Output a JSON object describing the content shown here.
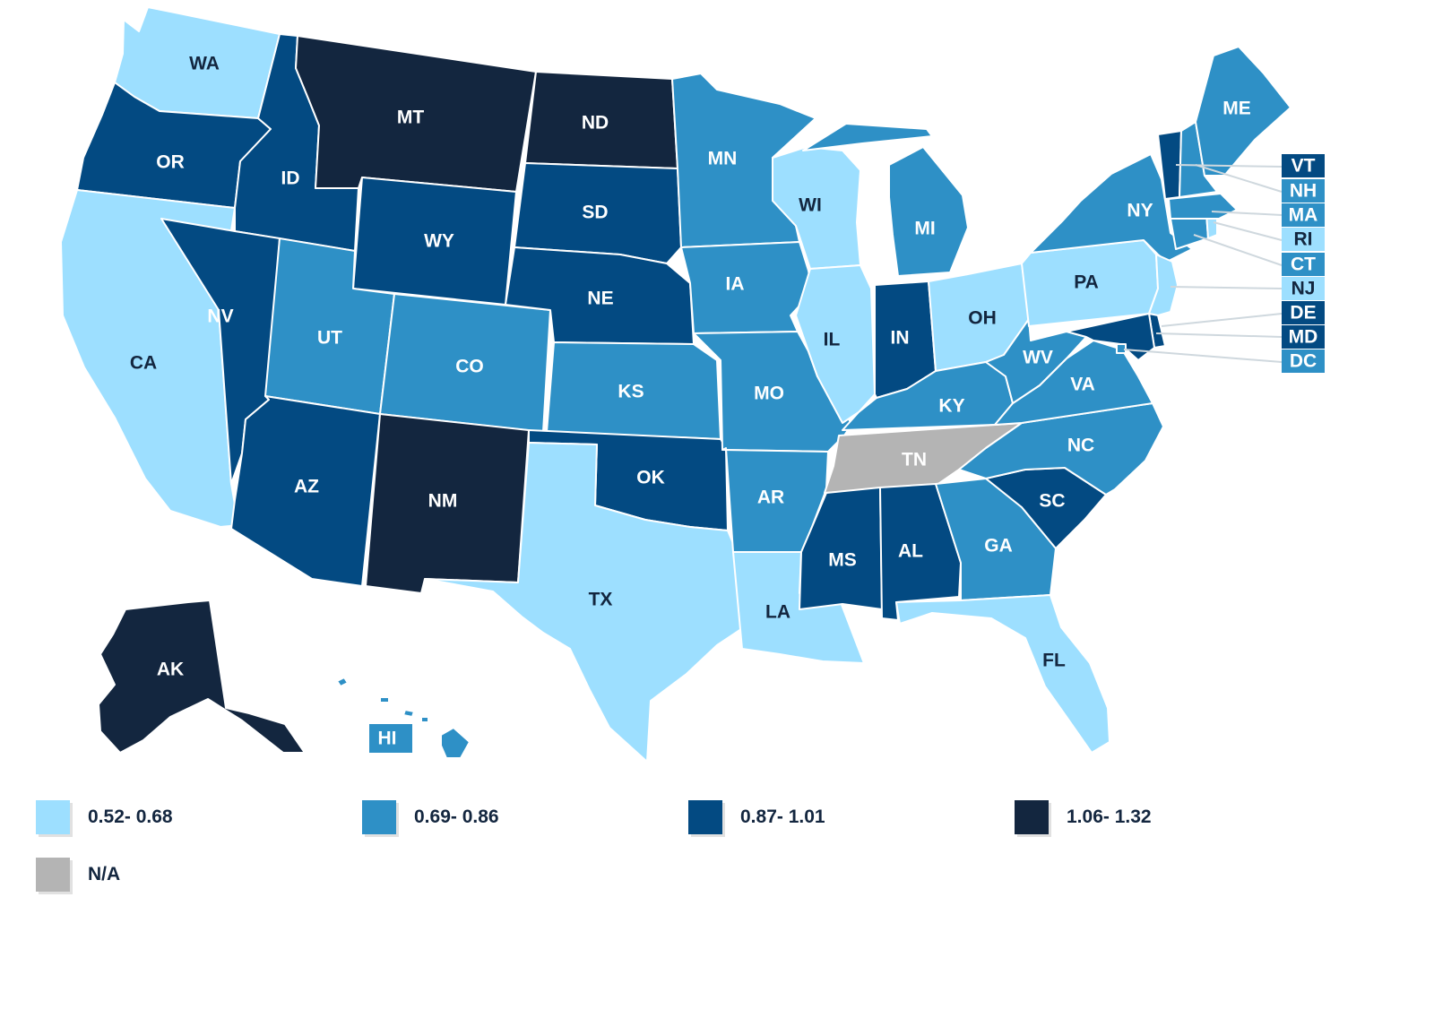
{
  "legend": [
    {
      "id": "c1",
      "label": "0.52- 0.68",
      "color": "#9ddfff"
    },
    {
      "id": "c2",
      "label": "0.69- 0.86",
      "color": "#2e90c6"
    },
    {
      "id": "c3",
      "label": "0.87- 1.01",
      "color": "#034a82"
    },
    {
      "id": "c4",
      "label": "1.06- 1.32",
      "color": "#13263f"
    },
    {
      "id": "na",
      "label": "N/A",
      "color": "#b4b4b4"
    }
  ],
  "states": [
    {
      "abbr": "WA",
      "class": "c1"
    },
    {
      "abbr": "OR",
      "class": "c3"
    },
    {
      "abbr": "CA",
      "class": "c1"
    },
    {
      "abbr": "ID",
      "class": "c3"
    },
    {
      "abbr": "NV",
      "class": "c3"
    },
    {
      "abbr": "MT",
      "class": "c4"
    },
    {
      "abbr": "WY",
      "class": "c3"
    },
    {
      "abbr": "UT",
      "class": "c2"
    },
    {
      "abbr": "AZ",
      "class": "c3"
    },
    {
      "abbr": "CO",
      "class": "c2"
    },
    {
      "abbr": "NM",
      "class": "c4"
    },
    {
      "abbr": "ND",
      "class": "c4"
    },
    {
      "abbr": "SD",
      "class": "c3"
    },
    {
      "abbr": "NE",
      "class": "c3"
    },
    {
      "abbr": "KS",
      "class": "c2"
    },
    {
      "abbr": "OK",
      "class": "c3"
    },
    {
      "abbr": "TX",
      "class": "c1"
    },
    {
      "abbr": "MN",
      "class": "c2"
    },
    {
      "abbr": "IA",
      "class": "c2"
    },
    {
      "abbr": "MO",
      "class": "c2"
    },
    {
      "abbr": "AR",
      "class": "c2"
    },
    {
      "abbr": "LA",
      "class": "c1"
    },
    {
      "abbr": "WI",
      "class": "c1"
    },
    {
      "abbr": "IL",
      "class": "c1"
    },
    {
      "abbr": "MI",
      "class": "c2"
    },
    {
      "abbr": "IN",
      "class": "c3"
    },
    {
      "abbr": "OH",
      "class": "c1"
    },
    {
      "abbr": "KY",
      "class": "c2"
    },
    {
      "abbr": "TN",
      "class": "na"
    },
    {
      "abbr": "MS",
      "class": "c3"
    },
    {
      "abbr": "AL",
      "class": "c3"
    },
    {
      "abbr": "GA",
      "class": "c2"
    },
    {
      "abbr": "FL",
      "class": "c1"
    },
    {
      "abbr": "SC",
      "class": "c3"
    },
    {
      "abbr": "NC",
      "class": "c2"
    },
    {
      "abbr": "VA",
      "class": "c2"
    },
    {
      "abbr": "WV",
      "class": "c2"
    },
    {
      "abbr": "PA",
      "class": "c1"
    },
    {
      "abbr": "NY",
      "class": "c2"
    },
    {
      "abbr": "ME",
      "class": "c2"
    },
    {
      "abbr": "AK",
      "class": "c4"
    },
    {
      "abbr": "HI",
      "class": "c2"
    },
    {
      "abbr": "VT",
      "class": "c3"
    },
    {
      "abbr": "NH",
      "class": "c2"
    },
    {
      "abbr": "MA",
      "class": "c2"
    },
    {
      "abbr": "RI",
      "class": "c1"
    },
    {
      "abbr": "CT",
      "class": "c2"
    },
    {
      "abbr": "NJ",
      "class": "c1"
    },
    {
      "abbr": "DE",
      "class": "c3"
    },
    {
      "abbr": "MD",
      "class": "c3"
    },
    {
      "abbr": "DC",
      "class": "c2"
    }
  ]
}
